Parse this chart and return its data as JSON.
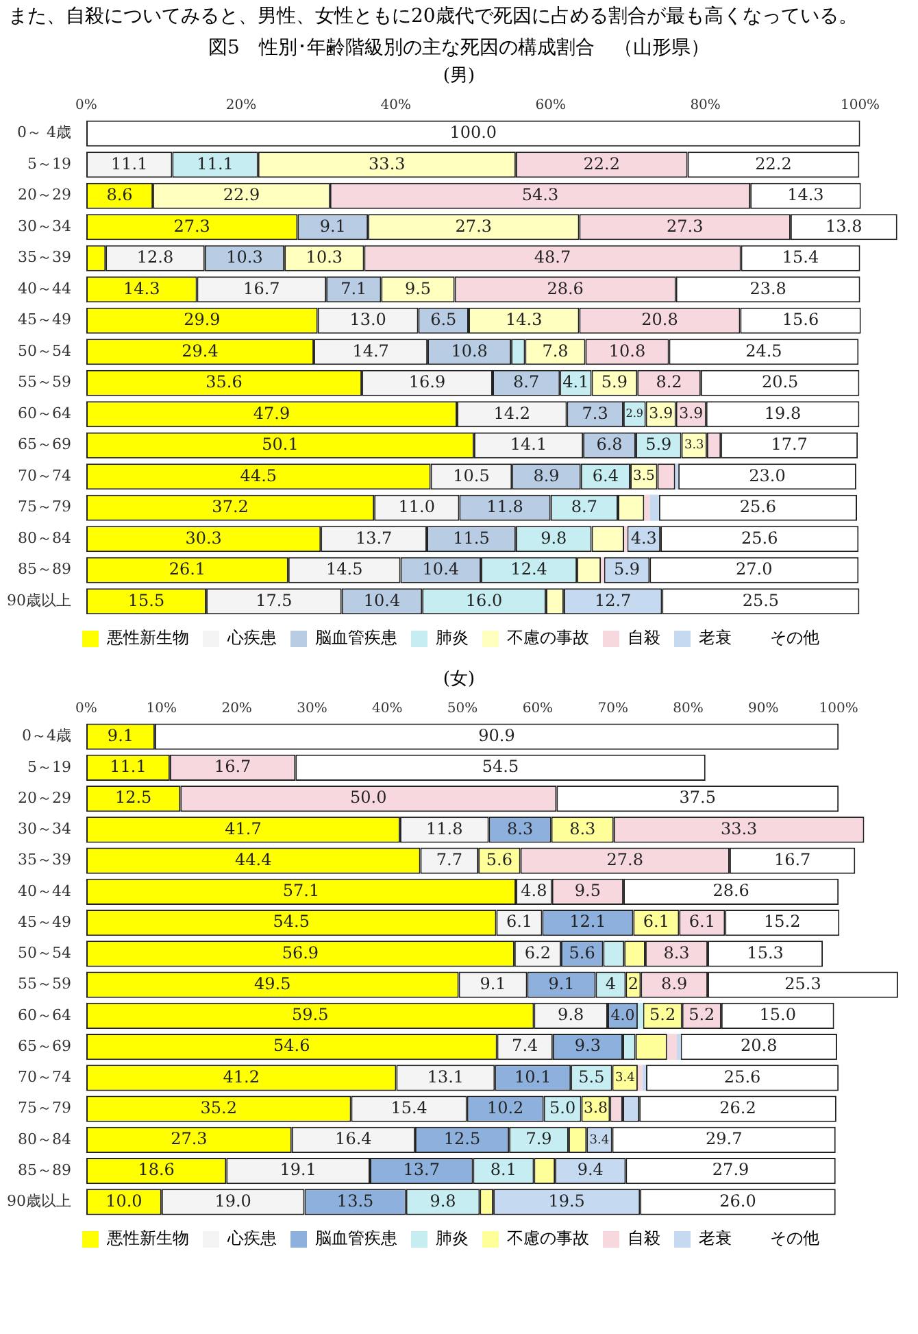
{
  "chart_data": [
    {
      "type": "bar",
      "orientation": "horizontal",
      "stacked": true,
      "legend": "bottom",
      "annotations": [
        "また、自殺についてみると、男性、女性ともに20歳代で死因に占める割合が最も高くなっている。"
      ],
      "title": "図5　性別･年齢階級別の主な死因の構成割合　（山形県）",
      "subtitle": "(男)",
      "categories": [
        "0～ 4歳",
        "5～19",
        "20～29",
        "30～34",
        "35～39",
        "40～44",
        "45～49",
        "50～54",
        "55～59",
        "60～64",
        "65～69",
        "70～74",
        "75～79",
        "80～84",
        "85～89",
        "90歳以上"
      ],
      "xlim": [
        0,
        105
      ],
      "xticks": [
        {
          "value": 0,
          "label": "0%"
        },
        {
          "value": 20,
          "label": "20%"
        },
        {
          "value": 40,
          "label": "40%"
        },
        {
          "value": 60,
          "label": "60%"
        },
        {
          "value": 80,
          "label": "80%"
        },
        {
          "value": 100,
          "label": "100%"
        }
      ],
      "series": [
        {
          "name": "悪性新生物",
          "color": "#ffff00",
          "values": [
            null,
            null,
            8.6,
            27.3,
            2.5,
            14.3,
            29.9,
            29.4,
            35.6,
            47.9,
            50.1,
            44.5,
            37.2,
            30.3,
            26.1,
            15.5
          ],
          "value_labels": [
            null,
            null,
            "8.6",
            "27.3",
            null,
            "14.3",
            "29.9",
            "29.4",
            "35.6",
            "47.9",
            "50.1",
            "44.5",
            "37.2",
            "30.3",
            "26.1",
            "15.5"
          ]
        },
        {
          "name": "心疾患",
          "color": "#f4f4f4",
          "values": [
            null,
            11.1,
            null,
            null,
            12.8,
            16.7,
            13.0,
            14.7,
            16.9,
            14.2,
            14.1,
            10.5,
            11.0,
            13.7,
            14.5,
            17.5
          ],
          "value_labels": [
            null,
            "11.1",
            null,
            null,
            "12.8",
            "16.7",
            "13.0",
            "14.7",
            "16.9",
            "14.2",
            "14.1",
            "10.5",
            "11.0",
            "13.7",
            "14.5",
            "17.5"
          ]
        },
        {
          "name": "脳血管疾患",
          "color": "#b8cce4",
          "values": [
            null,
            null,
            null,
            9.1,
            10.3,
            7.1,
            6.5,
            10.8,
            8.7,
            7.3,
            6.8,
            8.9,
            11.8,
            11.5,
            10.4,
            10.4
          ],
          "value_labels": [
            null,
            null,
            null,
            "9.1",
            "10.3",
            "7.1",
            "6.5",
            "10.8",
            "8.7",
            "7.3",
            "6.8",
            "8.9",
            "11.8",
            "11.5",
            "10.4",
            "10.4"
          ]
        },
        {
          "name": "肺炎",
          "color": "#c6eef2",
          "values": [
            null,
            11.1,
            null,
            null,
            null,
            null,
            null,
            1.8,
            4.1,
            2.9,
            5.9,
            6.4,
            8.7,
            9.8,
            12.4,
            16.0
          ],
          "value_labels": [
            null,
            "11.1",
            null,
            null,
            null,
            null,
            null,
            null,
            "4.1",
            "2.9",
            "5.9",
            "6.4",
            "8.7",
            "9.8",
            "12.4",
            "16.0"
          ]
        },
        {
          "name": "不慮の事故",
          "color": "#ffffc0",
          "values": [
            null,
            33.3,
            22.9,
            27.3,
            10.3,
            9.5,
            14.3,
            7.8,
            5.9,
            3.9,
            3.3,
            3.5,
            3.4,
            4.2,
            3.1,
            2.3
          ],
          "value_labels": [
            null,
            "33.3",
            "22.9",
            "27.3",
            "10.3",
            "9.5",
            "14.3",
            "7.8",
            "5.9",
            "3.9",
            "3.3",
            "3.5",
            null,
            null,
            null,
            null
          ]
        },
        {
          "name": "自殺",
          "color": "#f6d8de",
          "values": [
            null,
            22.2,
            54.3,
            27.3,
            48.7,
            28.6,
            20.8,
            10.8,
            8.2,
            3.9,
            1.8,
            2.3,
            0.7,
            0.4,
            0.4,
            null
          ],
          "value_labels": [
            null,
            "22.2",
            "54.3",
            "27.3",
            "48.7",
            "28.6",
            "20.8",
            "10.8",
            "8.2",
            "3.9",
            null,
            null,
            null,
            null,
            null,
            null
          ]
        },
        {
          "name": "老衰",
          "color": "#c5d9f1",
          "values": [
            null,
            null,
            null,
            null,
            null,
            null,
            null,
            null,
            null,
            null,
            null,
            0.4,
            1.2,
            4.3,
            5.9,
            12.7
          ],
          "value_labels": [
            null,
            null,
            null,
            null,
            null,
            null,
            null,
            null,
            null,
            null,
            null,
            null,
            null,
            "4.3",
            "5.9",
            "12.7"
          ]
        },
        {
          "name": "その他",
          "color": "#ffffff",
          "values": [
            100.0,
            22.2,
            14.3,
            13.8,
            15.4,
            23.8,
            15.6,
            24.5,
            20.5,
            19.8,
            17.7,
            23.0,
            25.6,
            25.6,
            27.0,
            25.5
          ],
          "value_labels": [
            "100.0",
            "22.2",
            "14.3",
            "13.8",
            "15.4",
            "23.8",
            "15.6",
            "24.5",
            "20.5",
            "19.8",
            "17.7",
            "23.0",
            "25.6",
            "25.6",
            "27.0",
            "25.5"
          ]
        }
      ]
    },
    {
      "type": "bar",
      "orientation": "horizontal",
      "stacked": true,
      "legend": "bottom",
      "subtitle": "(女)",
      "categories": [
        "0～4歳",
        "5～19",
        "20～29",
        "30～34",
        "35～39",
        "40～44",
        "45～49",
        "50～54",
        "55～59",
        "60～64",
        "65～69",
        "70～74",
        "75～79",
        "80～84",
        "85～89",
        "90歳以上"
      ],
      "xlim": [
        0,
        108
      ],
      "xticks": [
        {
          "value": 0,
          "label": "0%"
        },
        {
          "value": 10,
          "label": "10%"
        },
        {
          "value": 20,
          "label": "20%"
        },
        {
          "value": 30,
          "label": "30%"
        },
        {
          "value": 40,
          "label": "40%"
        },
        {
          "value": 50,
          "label": "50%"
        },
        {
          "value": 60,
          "label": "60%"
        },
        {
          "value": 70,
          "label": "70%"
        },
        {
          "value": 80,
          "label": "80%"
        },
        {
          "value": 90,
          "label": "90%"
        },
        {
          "value": 100,
          "label": "100%"
        }
      ],
      "series": [
        {
          "name": "悪性新生物",
          "color": "#ffff00",
          "values": [
            9.1,
            11.1,
            12.5,
            41.7,
            44.4,
            57.1,
            54.5,
            56.9,
            49.5,
            59.5,
            54.6,
            41.2,
            35.2,
            27.3,
            18.6,
            10.0
          ],
          "value_labels": [
            "9.1",
            "11.1",
            "12.5",
            "41.7",
            "44.4",
            "57.1",
            "54.5",
            "56.9",
            "49.5",
            "59.5",
            "54.6",
            "41.2",
            "35.2",
            "27.3",
            "18.6",
            "10.0"
          ]
        },
        {
          "name": "心疾患",
          "color": "#f4f4f4",
          "values": [
            null,
            null,
            null,
            11.8,
            7.7,
            4.8,
            6.1,
            6.2,
            9.1,
            9.8,
            7.4,
            13.1,
            15.4,
            16.4,
            19.1,
            19.0
          ],
          "value_labels": [
            null,
            null,
            null,
            "11.8",
            "7.7",
            "4.8",
            "6.1",
            "6.2",
            "9.1",
            "9.8",
            "7.4",
            "13.1",
            "15.4",
            "16.4",
            "19.1",
            "19.0"
          ]
        },
        {
          "name": "脳血管疾患",
          "color": "#8eb0dc",
          "values": [
            null,
            null,
            null,
            8.3,
            null,
            null,
            12.1,
            5.6,
            9.1,
            4.0,
            9.3,
            10.1,
            10.2,
            12.5,
            13.7,
            13.5
          ],
          "value_labels": [
            null,
            null,
            null,
            "8.3",
            null,
            null,
            "12.1",
            "5.6",
            "9.1",
            "4.0",
            "9.3",
            "10.1",
            "10.2",
            "12.5",
            "13.7",
            "13.5"
          ]
        },
        {
          "name": "肺炎",
          "color": "#c6eef2",
          "values": [
            null,
            null,
            null,
            null,
            null,
            null,
            null,
            2.8,
            4,
            0.7,
            1.7,
            5.5,
            5.0,
            7.9,
            8.1,
            9.8
          ],
          "value_labels": [
            null,
            null,
            null,
            null,
            null,
            null,
            null,
            null,
            "4",
            null,
            null,
            "5.5",
            "5.0",
            "7.9",
            "8.1",
            "9.8"
          ]
        },
        {
          "name": "不慮の事故",
          "color": "#ffff99",
          "values": [
            null,
            null,
            null,
            8.3,
            5.6,
            null,
            6.1,
            2.8,
            2,
            5.2,
            4.2,
            3.4,
            3.8,
            2.4,
            2.8,
            1.8
          ],
          "value_labels": [
            null,
            null,
            null,
            "8.3",
            "5.6",
            null,
            "6.1",
            null,
            "2",
            "5.2",
            null,
            "3.4",
            "3.8",
            null,
            null,
            null
          ]
        },
        {
          "name": "自殺",
          "color": "#f6d8de",
          "values": [
            null,
            16.7,
            50.0,
            33.3,
            27.8,
            9.5,
            6.1,
            8.3,
            8.9,
            5.2,
            1.3,
            0.6,
            1.7,
            null,
            null,
            null
          ],
          "value_labels": [
            null,
            "16.7",
            "50.0",
            "33.3",
            "27.8",
            "9.5",
            "6.1",
            "8.3",
            "8.9",
            "5.2",
            null,
            null,
            null,
            null,
            null,
            null
          ]
        },
        {
          "name": "老衰",
          "color": "#c5d9f1",
          "values": [
            null,
            null,
            null,
            null,
            null,
            null,
            null,
            null,
            null,
            null,
            0.5,
            0.5,
            2.2,
            3.4,
            9.4,
            19.5
          ],
          "value_labels": [
            null,
            null,
            null,
            null,
            null,
            null,
            null,
            null,
            null,
            null,
            null,
            null,
            null,
            "3.4",
            "9.4",
            "19.5"
          ]
        },
        {
          "name": "その他",
          "color": "#ffffff",
          "values": [
            90.9,
            54.5,
            37.5,
            null,
            16.7,
            28.6,
            15.2,
            15.3,
            25.3,
            15.0,
            20.8,
            25.6,
            26.2,
            29.7,
            27.9,
            26.0
          ],
          "value_labels": [
            "90.9",
            "54.5",
            "37.5",
            null,
            "16.7",
            "28.6",
            "15.2",
            "15.3",
            "25.3",
            "15.0",
            "20.8",
            "25.6",
            "26.2",
            "29.7",
            "27.9",
            "26.0"
          ]
        }
      ]
    }
  ]
}
